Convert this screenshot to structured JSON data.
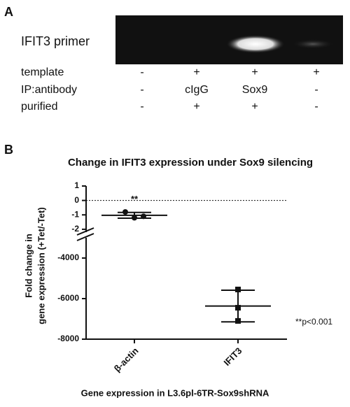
{
  "panel_a": {
    "label": "A",
    "primer": "IFIT3 primer",
    "rows": [
      {
        "label": "template",
        "cells": [
          "-",
          "+",
          "+",
          "+"
        ]
      },
      {
        "label": "IP:antibody",
        "cells": [
          "-",
          "cIgG",
          "Sox9",
          "-"
        ]
      },
      {
        "label": "purified",
        "cells": [
          "-",
          "+",
          "+",
          "-"
        ]
      }
    ]
  },
  "chart_data": {
    "type": "dot",
    "panel": "B",
    "title": "Change in IFIT3 expression under Sox9 silencing",
    "y_label": [
      "Fold change in",
      "gene expression (+Tet/-Tet)"
    ],
    "x_label": "Gene expression in L3.6pl-6TR-Sox9shRNA",
    "categories": [
      "β-actin",
      "IFIT3"
    ],
    "values": [
      [
        -0.8,
        -1.2,
        -1.1
      ],
      [
        -5550,
        -6450,
        -7100
      ]
    ],
    "means": [
      -1.03,
      -6367
    ],
    "errors": [
      0.2,
      780
    ],
    "markers": [
      "circle",
      "square"
    ],
    "reference_line": 0,
    "segments": [
      {
        "ylim": [
          -2.2,
          1
        ],
        "yticks": [
          1,
          0,
          -1,
          -2
        ]
      },
      {
        "ylim": [
          -8000,
          -3000
        ],
        "yticks": [
          -4000,
          -6000,
          -8000
        ]
      }
    ],
    "significance": [
      "**",
      ""
    ],
    "note": "**p<0.001"
  }
}
